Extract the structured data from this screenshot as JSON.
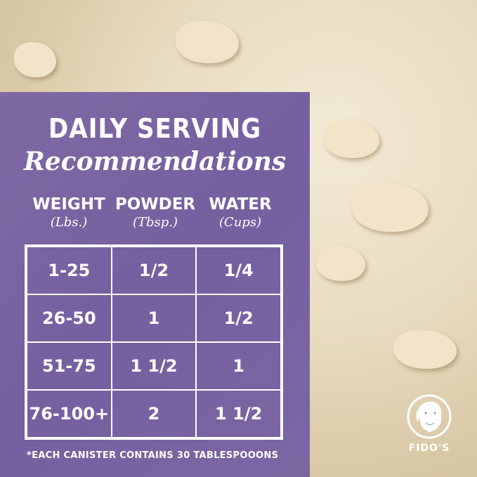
{
  "title": {
    "line1": "DAILY SERVING",
    "line2": "Recommendations"
  },
  "columns": [
    {
      "label": "WEIGHT",
      "unit": "(Lbs.)"
    },
    {
      "label": "POWDER",
      "unit": "(Tbsp.)"
    },
    {
      "label": "WATER",
      "unit": "(Cups)"
    }
  ],
  "rows": [
    [
      "1-25",
      "1/2",
      "1/4"
    ],
    [
      "26-50",
      "1",
      "1/2"
    ],
    [
      "51-75",
      "1 1/2",
      "1"
    ],
    [
      "76-100+",
      "2",
      "1 1/2"
    ]
  ],
  "footnote": "*EACH CANISTER CONTAINS 30 TABLESPOOONS",
  "brand": {
    "name": "FIDO'S",
    "logo_icon": "dog-head-icon"
  },
  "colors": {
    "panel": "#7b64a1",
    "text": "#ffffff",
    "background": "#e8dcc0"
  }
}
